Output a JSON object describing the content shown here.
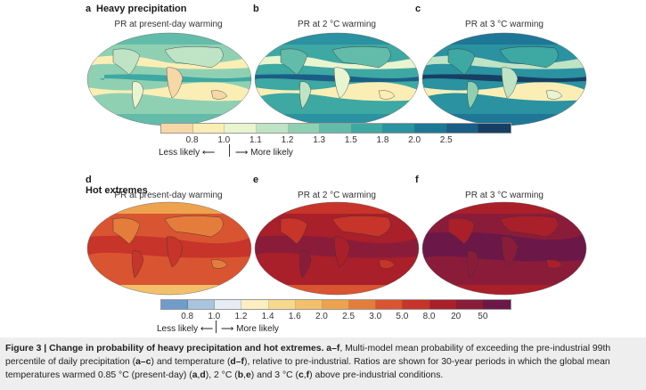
{
  "precip": {
    "section_title": "Heavy precipitation",
    "panels": [
      {
        "letter": "a",
        "title": "PR at present-day warming"
      },
      {
        "letter": "b",
        "title": "PR at 2 °C warming"
      },
      {
        "letter": "c",
        "title": "PR at 3 °C warming"
      }
    ],
    "colorbar": {
      "colors": [
        "#f6d7a7",
        "#fbeeb5",
        "#e9f4d0",
        "#bfe3c5",
        "#8fd0b3",
        "#63bca9",
        "#3ea8a2",
        "#2a92a0",
        "#1e7796",
        "#1a5e86",
        "#173f64"
      ],
      "ticks": [
        "0.8",
        "1.0",
        "1.1",
        "1.2",
        "1.3",
        "1.5",
        "1.8",
        "2.0",
        "2.5"
      ],
      "less_label": "Less likely",
      "more_label": "More likely"
    }
  },
  "hot": {
    "section_title": "Hot extremes",
    "panels": [
      {
        "letter": "d",
        "title": "PR at present-day warming"
      },
      {
        "letter": "e",
        "title": "PR at 2 °C warming"
      },
      {
        "letter": "f",
        "title": "PR at 3 °C warming"
      }
    ],
    "colorbar": {
      "colors": [
        "#6f9cc9",
        "#a9c4de",
        "#e6ecf2",
        "#fbeec0",
        "#f6d98c",
        "#f2c06a",
        "#eda24e",
        "#e47d3c",
        "#d95430",
        "#c7342a",
        "#a91f2a",
        "#8a1c3a",
        "#6b1848"
      ],
      "ticks": [
        "0.8",
        "1.0",
        "1.2",
        "1.4",
        "1.6",
        "2.0",
        "2.5",
        "3.0",
        "5.0",
        "8.0",
        "20",
        "50"
      ],
      "less_label": "Less likely",
      "more_label": "More likely"
    }
  },
  "caption": {
    "label": "Figure 3 | Change in probability of heavy precipitation and hot extremes. a–f",
    "text": ", Multi-model mean probability of exceeding the pre-industrial 99th percentile of daily precipitation (",
    "ac": "a–c",
    "t2": ") and temperature (",
    "df": "d–f",
    "t3": "), relative to pre-industrial. Ratios are shown for 30-year periods in which the global mean temperatures warmed 0.85 °C (present-day) (",
    "ad": "a",
    "comma1": ",",
    "d": "d",
    "t4": "), 2 °C (",
    "b": "b",
    "comma2": ",",
    "e": "e",
    "t5": ") and 3 °C (",
    "c": "c",
    "comma3": ",",
    "f": "f",
    "t6": ") above pre-industrial conditions."
  }
}
